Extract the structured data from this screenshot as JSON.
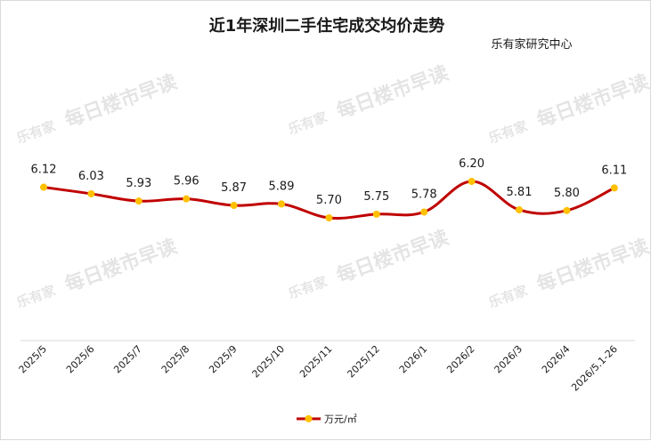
{
  "chart_data": {
    "type": "line",
    "title": "近1年深圳二手住宅成交均价走势",
    "source": "乐有家研究中心",
    "categories": [
      "2025/5",
      "2025/6",
      "2025/7",
      "2025/8",
      "2025/9",
      "2025/10",
      "2025/11",
      "2025/12",
      "2026/1",
      "2026/2",
      "2026/3",
      "2026/4",
      "2026/5.1-26"
    ],
    "series": [
      {
        "name": "万元/㎡",
        "values": [
          6.12,
          6.03,
          5.93,
          5.96,
          5.87,
          5.89,
          5.7,
          5.75,
          5.78,
          6.2,
          5.81,
          5.8,
          6.11
        ],
        "labels": [
          "6.12",
          "6.03",
          "5.93",
          "5.96",
          "5.87",
          "5.89",
          "5.70",
          "5.75",
          "5.78",
          "6.20",
          "5.81",
          "5.80",
          "6.11"
        ]
      }
    ],
    "line_color": "#c00000",
    "marker_color": "#ffc000",
    "legend_position": "bottom",
    "grid": false,
    "watermark": {
      "logo": "乐有家",
      "text": "每日楼市早读"
    }
  }
}
